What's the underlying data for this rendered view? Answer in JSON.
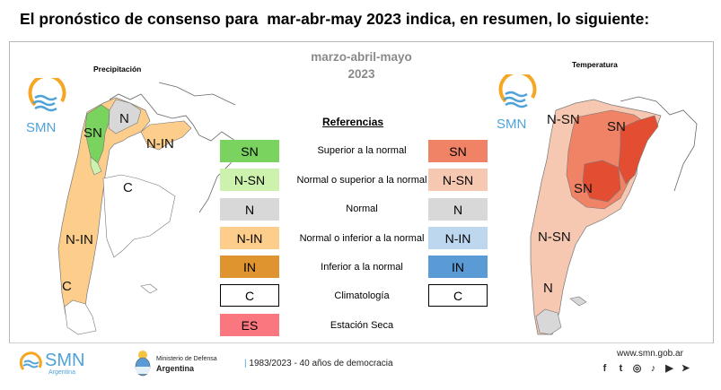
{
  "headline": "El pronóstico de consenso para  mar-abr-may 2023 indica, en resumen, lo siguiente:",
  "period": {
    "months": "marzo-abril-mayo",
    "year": "2023"
  },
  "maps": {
    "precip": {
      "title": "Precipitación",
      "labels": [
        "SN",
        "N",
        "N-IN",
        "C",
        "N-IN",
        "C"
      ]
    },
    "temp": {
      "title": "Temperatura",
      "labels": [
        "N-SN",
        "SN",
        "SN",
        "N-SN",
        "N"
      ]
    }
  },
  "references": {
    "title": "Referencias",
    "rows": [
      {
        "left": "SN",
        "left_color": "#7bd35f",
        "desc": "Superior a la normal",
        "right": "SN",
        "right_color": "#f08266"
      },
      {
        "left": "N-SN",
        "left_color": "#ccf2ad",
        "desc": "Normal o superior a la normal",
        "right": "N-SN",
        "right_color": "#f6c7b1"
      },
      {
        "left": "N",
        "left_color": "#d8d8d8",
        "desc": "Normal",
        "right": "N",
        "right_color": "#d8d8d8"
      },
      {
        "left": "N-IN",
        "left_color": "#fdce8b",
        "desc": "Normal o inferior a la normal",
        "right": "N-IN",
        "right_color": "#bdd7ee"
      },
      {
        "left": "IN",
        "left_color": "#e0942f",
        "desc": "Inferior a la normal",
        "right": "IN",
        "right_color": "#5b9bd5"
      },
      {
        "left": "C",
        "left_color": "#ffffff",
        "desc": "Climatología",
        "right": "C",
        "right_color": "#ffffff"
      },
      {
        "left": "ES",
        "left_color": "#fb7780",
        "desc": "Estación Seca",
        "right": "",
        "right_color": ""
      }
    ]
  },
  "logo": {
    "text": "SMN"
  },
  "footer": {
    "smn_name": "SMN",
    "smn_sub": "Argentina",
    "ministry_line1": "Ministerio de Defensa",
    "ministry_line2": "Argentina",
    "democracy": "1983/2023 - 40 años de democracia",
    "website": "www.smn.gob.ar",
    "social_icons": [
      "facebook-icon",
      "twitter-icon",
      "instagram-icon",
      "tiktok-icon",
      "youtube-icon",
      "telegram-icon"
    ],
    "social_glyphs": [
      "f",
      "t",
      "◎",
      "♪",
      "▶",
      "➤"
    ]
  },
  "colors": {
    "smn_orange": "#f5a623",
    "smn_blue": "#4fa3d8"
  }
}
